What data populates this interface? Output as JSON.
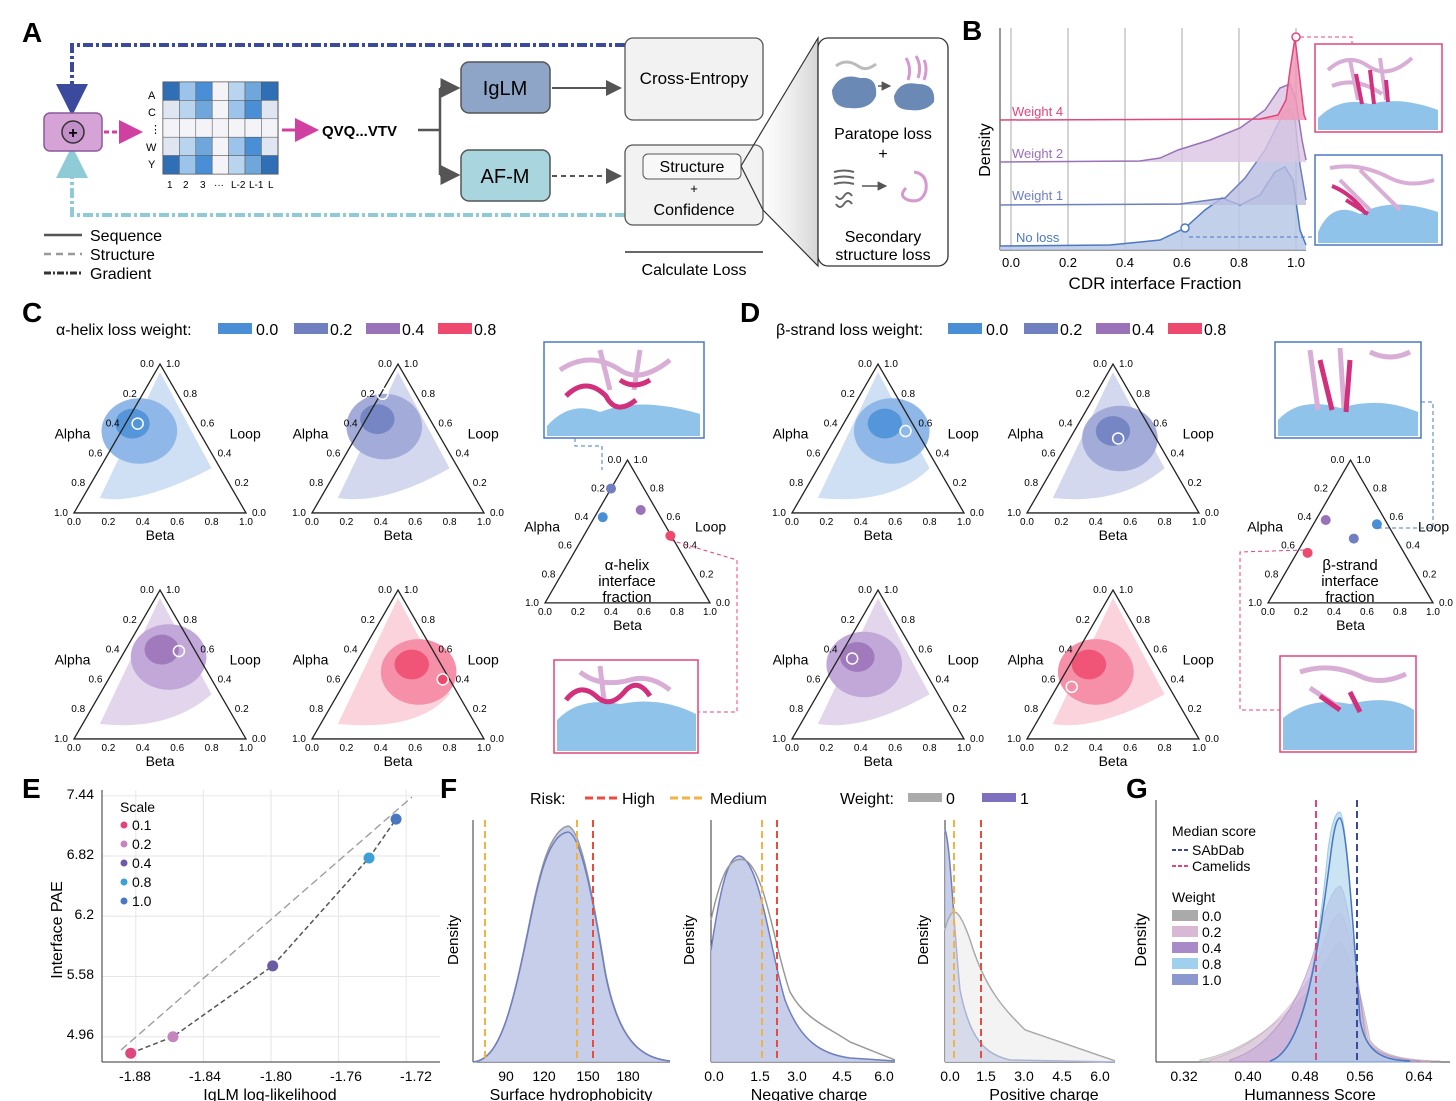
{
  "panels": {
    "A": {
      "letter": "A",
      "matrix_rows": [
        "A",
        "C",
        "⋮",
        "W",
        "Y"
      ],
      "matrix_cols": [
        "1",
        "2",
        "3",
        "···",
        "L-2",
        "L-1",
        "L"
      ],
      "sequence": "QVQ...VTV",
      "iglm": "IgLM",
      "afm": "AF-M",
      "cross_entropy": "Cross-Entropy",
      "structure": "Structure",
      "plus": "+",
      "confidence": "Confidence",
      "calculate_loss": "Calculate Loss",
      "paratope_loss": "Paratope loss",
      "secondary_loss_1": "Secondary",
      "secondary_loss_2": "structure loss",
      "legend": [
        "Sequence",
        "Structure",
        "Gradient"
      ]
    },
    "B": {
      "letter": "B",
      "ylabel": "Density",
      "xlabel": "CDR interface Fraction",
      "ticks": [
        "0.0",
        "0.2",
        "0.4",
        "0.6",
        "0.8",
        "1.0"
      ],
      "labels": [
        "Weight 4",
        "Weight 2",
        "Weight 1",
        "No loss"
      ]
    },
    "C": {
      "letter": "C",
      "legend_title": "α-helix loss weight:",
      "legend_values": [
        "0.0",
        "0.2",
        "0.4",
        "0.8"
      ],
      "summary_1": "α-helix",
      "summary_2": "interface",
      "summary_3": "fraction"
    },
    "D": {
      "letter": "D",
      "legend_title": "β-strand loss weight:",
      "legend_values": [
        "0.0",
        "0.2",
        "0.4",
        "0.8"
      ],
      "summary_1": "β-strand",
      "summary_2": "interface",
      "summary_3": "fraction"
    },
    "ternary": {
      "alpha": "Alpha",
      "loop": "Loop",
      "beta": "Beta",
      "ticks": [
        "0.0",
        "0.2",
        "0.4",
        "0.6",
        "0.8",
        "1.0"
      ]
    },
    "E": {
      "letter": "E",
      "ylabel": "Interface PAE",
      "xlabel": "IgLM log-likelihood",
      "yticks": [
        "7.44",
        "6.82",
        "6.2",
        "5.58",
        "4.96"
      ],
      "xticks": [
        "-1.88",
        "-1.84",
        "-1.80",
        "-1.76",
        "-1.72"
      ],
      "legend_title": "Scale",
      "legend": [
        "0.1",
        "0.2",
        "0.4",
        "0.8",
        "1.0"
      ]
    },
    "F": {
      "letter": "F",
      "risk_label": "Risk:",
      "risk_high": "High",
      "risk_medium": "Medium",
      "weight_label": "Weight:",
      "weight_0": "0",
      "weight_1": "1",
      "ylabel": "Density",
      "x1": "Surface hydrophobicity",
      "x1_ticks": [
        "90",
        "120",
        "150",
        "180"
      ],
      "x2": "Negative charge",
      "x2_ticks": [
        "0.0",
        "1.5",
        "3.0",
        "4.5",
        "6.0"
      ],
      "x3": "Positive charge",
      "x3_ticks": [
        "0.0",
        "1.5",
        "3.0",
        "4.5",
        "6.0"
      ]
    },
    "G": {
      "letter": "G",
      "ylabel": "Density",
      "xlabel": "Humanness Score",
      "xticks": [
        "0.32",
        "0.40",
        "0.48",
        "0.56",
        "0.64"
      ],
      "median_title": "Median score",
      "median_1": "SAbDab",
      "median_2": "Camelids",
      "weight_title": "Weight",
      "weights": [
        "0.0",
        "0.2",
        "0.4",
        "0.8",
        "1.0"
      ]
    }
  },
  "chart_data": [
    {
      "type": "line",
      "panel": "E",
      "xlabel": "IgLM log-likelihood",
      "ylabel": "Interface PAE",
      "xlim": [
        -1.9,
        -1.7
      ],
      "ylim": [
        4.7,
        7.5
      ],
      "series": [
        {
          "x": [
            -1.883,
            -1.858,
            -1.799,
            -1.742,
            -1.726
          ],
          "y": [
            4.79,
            4.96,
            5.69,
            6.8,
            7.2
          ]
        }
      ],
      "legend_title": "Scale",
      "scale": [
        0.1,
        0.2,
        0.4,
        0.8,
        1.0
      ]
    }
  ],
  "colors": {
    "w00": "#4a8fd6",
    "w02": "#6f7fbf",
    "w04": "#9a72b8",
    "w08": "#ee4a6e",
    "pink": "#e0457d",
    "navy": "#3c4a9e",
    "teal": "#8ecbd6",
    "high": "#e94b3c",
    "medium": "#f2b245"
  }
}
